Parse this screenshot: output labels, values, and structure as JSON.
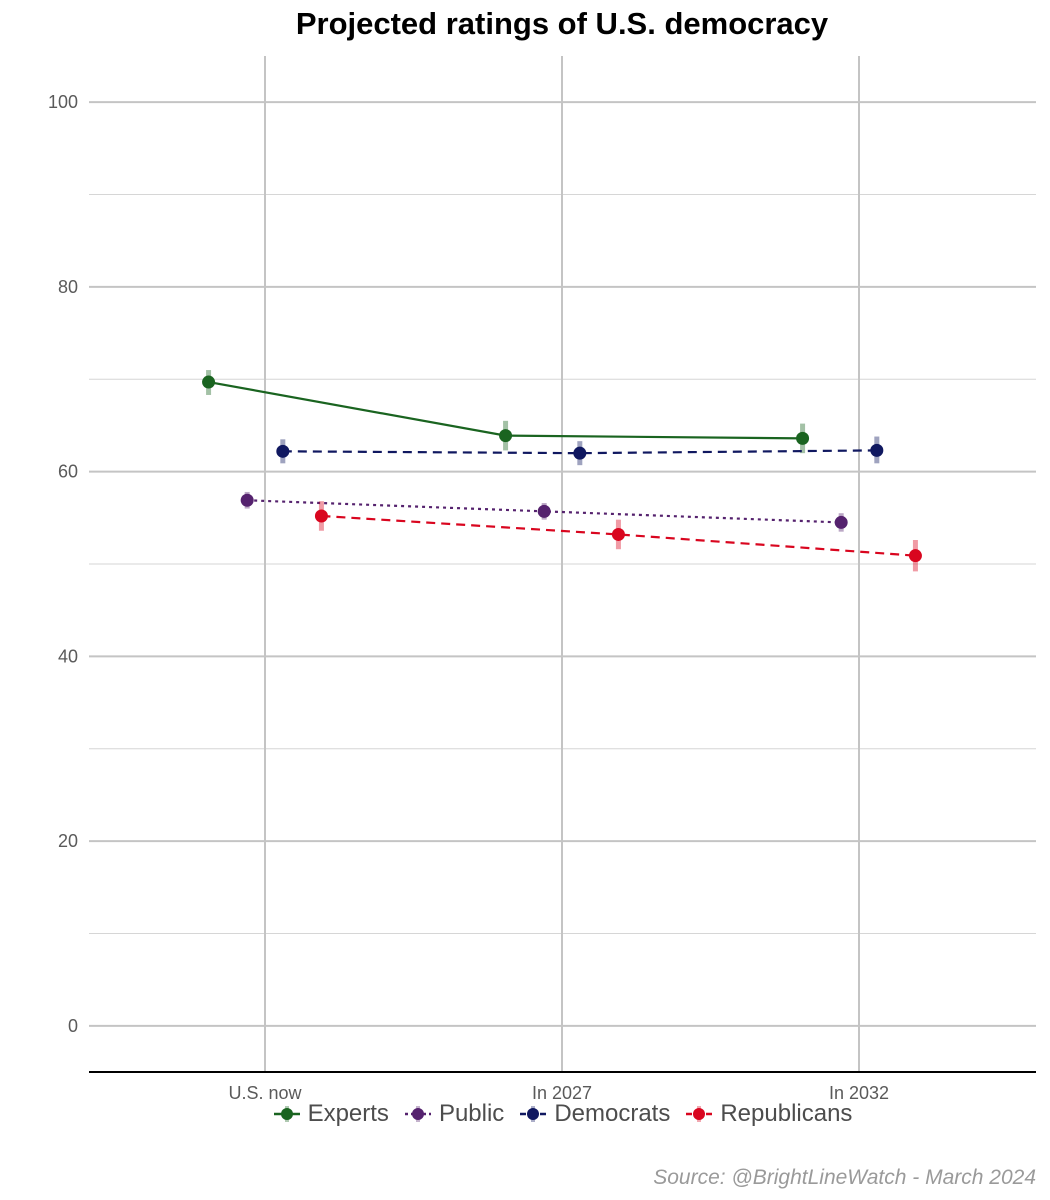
{
  "chart_data": {
    "type": "line",
    "title": "Projected ratings of U.S. democracy",
    "categories": [
      "U.S. now",
      "In 2027",
      "In 2032"
    ],
    "ylim": [
      -5,
      105
    ],
    "yticks": [
      0,
      20,
      40,
      60,
      80,
      100
    ],
    "grid": true,
    "legend_position": "bottom",
    "series": [
      {
        "name": "Experts",
        "color": "#1a6420",
        "line": "solid",
        "dodge": -0.19,
        "values": [
          69.7,
          63.9,
          63.6
        ],
        "err": [
          [
            68.3,
            71.0
          ],
          [
            62.3,
            65.5
          ],
          [
            62.0,
            65.2
          ]
        ]
      },
      {
        "name": "Public",
        "color": "#55226e",
        "line": "dotted",
        "dodge": -0.06,
        "values": [
          56.9,
          55.7,
          54.5
        ],
        "err": [
          [
            56.0,
            57.8
          ],
          [
            54.8,
            56.6
          ],
          [
            53.5,
            55.5
          ]
        ]
      },
      {
        "name": "Democrats",
        "color": "#101860",
        "line": "dashed",
        "dodge": 0.06,
        "values": [
          62.2,
          62.0,
          62.3
        ],
        "err": [
          [
            60.9,
            63.5
          ],
          [
            60.7,
            63.3
          ],
          [
            60.9,
            63.8
          ]
        ]
      },
      {
        "name": "Republicans",
        "color": "#d9061f",
        "line": "dashed",
        "dodge": 0.19,
        "values": [
          55.2,
          53.2,
          50.9
        ],
        "err": [
          [
            53.6,
            56.8
          ],
          [
            51.6,
            54.8
          ],
          [
            49.2,
            52.6
          ]
        ]
      }
    ]
  },
  "source": "Source: @BrightLineWatch - March 2024"
}
